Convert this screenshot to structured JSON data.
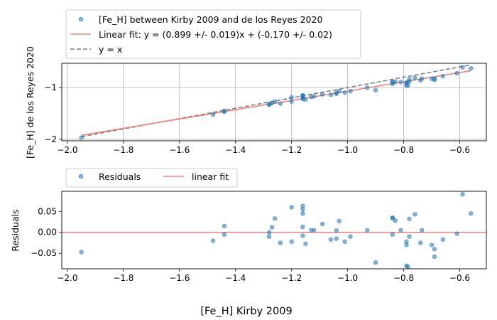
{
  "chart_data": [
    {
      "type": "scatter",
      "ylabel": "[Fe_H] de los Reyes 2020",
      "xlim": [
        -2.02,
        -0.505
      ],
      "ylim": [
        -2.03,
        -0.53
      ],
      "xticks": [
        -2.0,
        -1.8,
        -1.6,
        -1.4,
        -1.2,
        -1.0,
        -0.8,
        -0.6
      ],
      "yticks": [
        -2,
        -1
      ],
      "xtick_labels": [
        "−2.0",
        "−1.8",
        "−1.6",
        "−1.4",
        "−1.2",
        "−1.0",
        "−0.8",
        "−0.6"
      ],
      "ytick_labels": [
        "−2",
        "−1"
      ],
      "grid": true,
      "legend": "top-left, above axes",
      "fit": {
        "slope": 0.899,
        "intercept": -0.17,
        "x_range": [
          -1.95,
          -0.56
        ]
      },
      "identity_x_range": [
        -1.95,
        -0.56
      ],
      "series": [
        {
          "name": "[Fe_H] between Kirby 2009 and de los Reyes 2020",
          "kind": "points",
          "color": "#1f77b4"
        },
        {
          "name": "Linear fit: y = (0.899 +/- 0.019)x + (-0.170 +/- 0.02)",
          "kind": "line",
          "color": "#f08080"
        },
        {
          "name": "y = x",
          "kind": "dashed-line",
          "color": "#808080"
        }
      ]
    },
    {
      "type": "scatter",
      "ylabel": "Residuals",
      "xlim": [
        -2.02,
        -0.505
      ],
      "ylim": [
        -0.087,
        0.098
      ],
      "xticks": [
        -2.0,
        -1.8,
        -1.6,
        -1.4,
        -1.2,
        -1.0,
        -0.8,
        -0.6
      ],
      "yticks": [
        -0.05,
        0.0,
        0.05
      ],
      "xtick_labels": [
        "−2.0",
        "−1.8",
        "−1.6",
        "−1.4",
        "−1.2",
        "−1.0",
        "−0.8",
        "−0.6"
      ],
      "ytick_labels": [
        "−0.05",
        "0.00",
        "0.05"
      ],
      "grid": false,
      "legend": "top-left, above axes",
      "series": [
        {
          "name": "Residuals",
          "kind": "points",
          "color": "#1f77b4"
        },
        {
          "name": "linear fit",
          "kind": "hline",
          "y": 0.0,
          "color": "#f08080"
        }
      ]
    }
  ],
  "points": {
    "x": [
      -1.95,
      -1.48,
      -1.44,
      -1.44,
      -1.28,
      -1.28,
      -1.27,
      -1.26,
      -1.24,
      -1.2,
      -1.2,
      -1.16,
      -1.16,
      -1.16,
      -1.16,
      -1.16,
      -1.15,
      -1.13,
      -1.12,
      -1.09,
      -1.06,
      -1.04,
      -1.04,
      -1.03,
      -1.01,
      -0.99,
      -0.93,
      -0.9,
      -0.84,
      -0.84,
      -0.84,
      -0.83,
      -0.81,
      -0.79,
      -0.79,
      -0.79,
      -0.785,
      -0.78,
      -0.78,
      -0.76,
      -0.74,
      -0.735,
      -0.7,
      -0.69,
      -0.69,
      -0.66,
      -0.61,
      -0.59,
      -0.56
    ],
    "residuals": [
      -0.047,
      -0.02,
      0.015,
      -0.005,
      0.0,
      -0.01,
      0.012,
      0.033,
      -0.025,
      0.06,
      -0.022,
      0.063,
      0.055,
      0.045,
      0.013,
      -0.008,
      -0.027,
      0.005,
      0.005,
      0.02,
      -0.017,
      0.004,
      -0.015,
      0.027,
      -0.022,
      -0.01,
      0.005,
      -0.072,
      0.035,
      0.034,
      -0.005,
      0.028,
      0.005,
      -0.022,
      -0.03,
      -0.08,
      -0.082,
      0.032,
      -0.01,
      0.043,
      -0.025,
      0.005,
      -0.03,
      -0.04,
      -0.058,
      -0.017,
      -0.003,
      0.091,
      0.045
    ]
  },
  "figure": {
    "xlabel": "[Fe_H] Kirby 2009"
  }
}
